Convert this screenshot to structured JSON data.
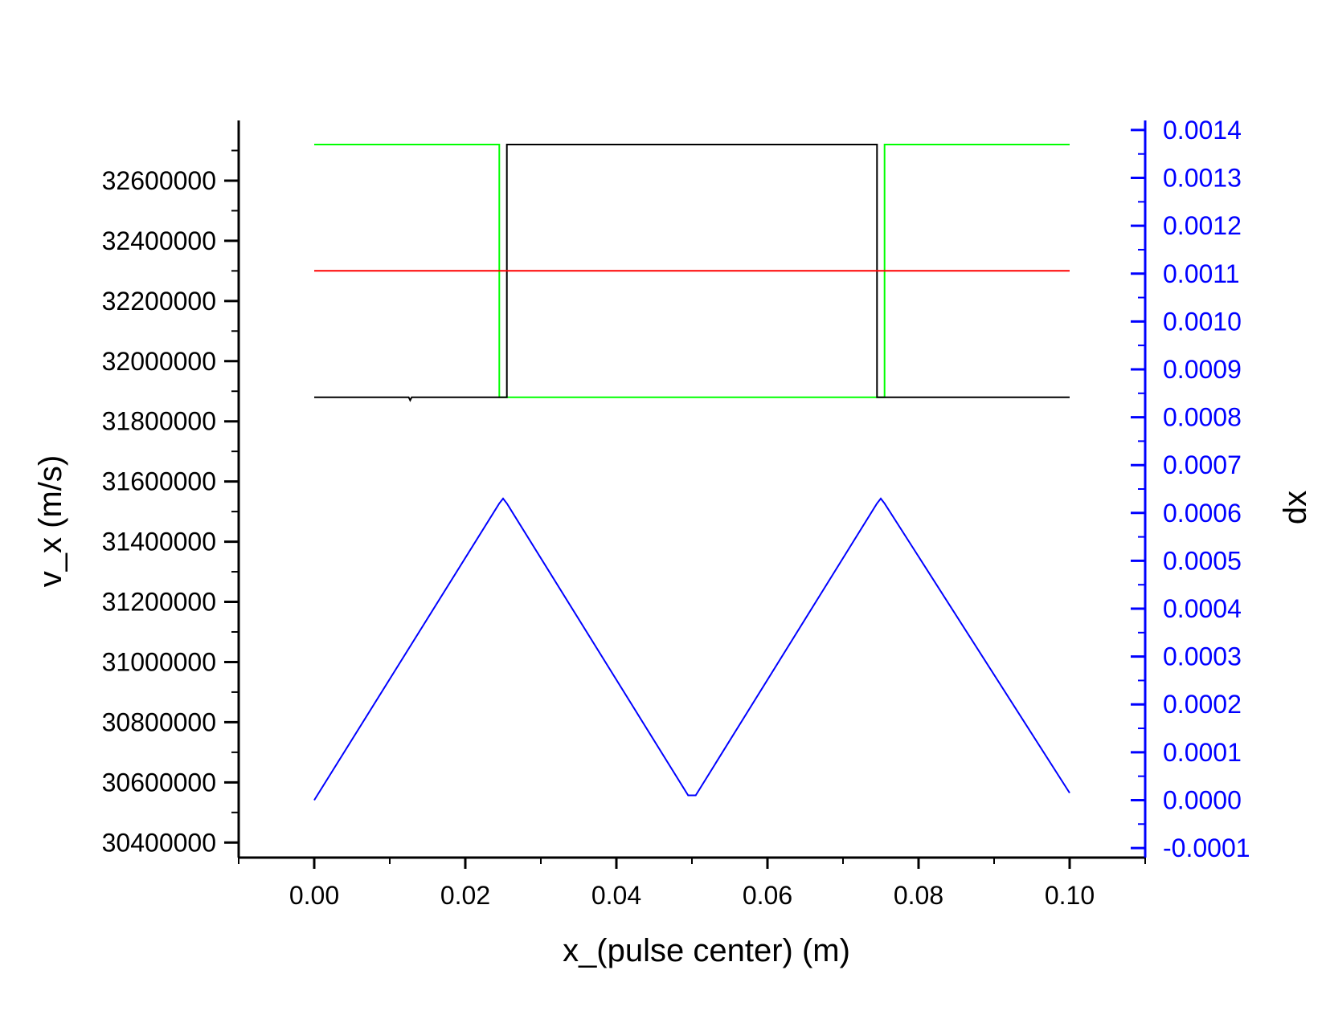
{
  "chart_data": {
    "type": "line",
    "title": "",
    "xlabel": "x_(pulse center) (m)",
    "ylabel": "v_x (m/s)",
    "y2label": "dx",
    "xlim": [
      -0.01,
      0.11
    ],
    "ylim": [
      30350000,
      32800000
    ],
    "y2lim": [
      -0.00012,
      0.00142
    ],
    "x_ticks": [
      "0.00",
      "0.02",
      "0.04",
      "0.06",
      "0.08",
      "0.10"
    ],
    "x_tick_values": [
      0.0,
      0.02,
      0.04,
      0.06,
      0.08,
      0.1
    ],
    "y_ticks": [
      "30400000",
      "30600000",
      "30800000",
      "31000000",
      "31200000",
      "31400000",
      "31600000",
      "31800000",
      "32000000",
      "32200000",
      "32400000",
      "32600000"
    ],
    "y_tick_values": [
      30400000,
      30600000,
      30800000,
      31000000,
      31200000,
      31400000,
      31600000,
      31800000,
      32000000,
      32200000,
      32400000,
      32600000
    ],
    "y2_ticks": [
      "-0.0001",
      "0.0000",
      "0.0001",
      "0.0002",
      "0.0003",
      "0.0004",
      "0.0005",
      "0.0006",
      "0.0007",
      "0.0008",
      "0.0009",
      "0.0010",
      "0.0011",
      "0.0012",
      "0.0013",
      "0.0014"
    ],
    "y2_tick_values": [
      -0.0001,
      0.0,
      0.0001,
      0.0002,
      0.0003,
      0.0004,
      0.0005,
      0.0006,
      0.0007,
      0.0008,
      0.0009,
      0.001,
      0.0011,
      0.0012,
      0.0013,
      0.0014
    ],
    "grid": false,
    "legend": "none",
    "series": [
      {
        "axis": "left",
        "color": "#00ff00",
        "x": [
          0.0,
          0.0245,
          0.0245,
          0.025,
          0.025,
          0.075,
          0.075,
          0.0755,
          0.0755,
          0.1
        ],
        "y": [
          32720000,
          32720000,
          31880000,
          31880000,
          31880000,
          31880000,
          31880000,
          31880000,
          32720000,
          32720000
        ]
      },
      {
        "axis": "left",
        "color": "#000000",
        "x": [
          0.0,
          0.0125,
          0.0127,
          0.0129,
          0.025,
          0.025,
          0.0255,
          0.0255,
          0.0745,
          0.0745,
          0.075,
          0.075,
          0.1
        ],
        "y": [
          31880000,
          31880000,
          31870000,
          31880000,
          31880000,
          31880000,
          31880000,
          32720000,
          32720000,
          31880000,
          31880000,
          31880000,
          31880000
        ]
      },
      {
        "axis": "left",
        "color": "#ff0000",
        "x": [
          0.0,
          0.1
        ],
        "y": [
          32300000,
          32300000
        ]
      },
      {
        "axis": "right",
        "color": "#0000ff",
        "x": [
          0.0,
          0.0245,
          0.025,
          0.0255,
          0.0495,
          0.05,
          0.0505,
          0.0745,
          0.075,
          0.0755,
          0.1
        ],
        "y": [
          0.0,
          0.00062,
          0.00063,
          0.00062,
          1e-05,
          1e-05,
          1e-05,
          0.00062,
          0.00063,
          0.00062,
          1.5e-05
        ]
      }
    ]
  }
}
